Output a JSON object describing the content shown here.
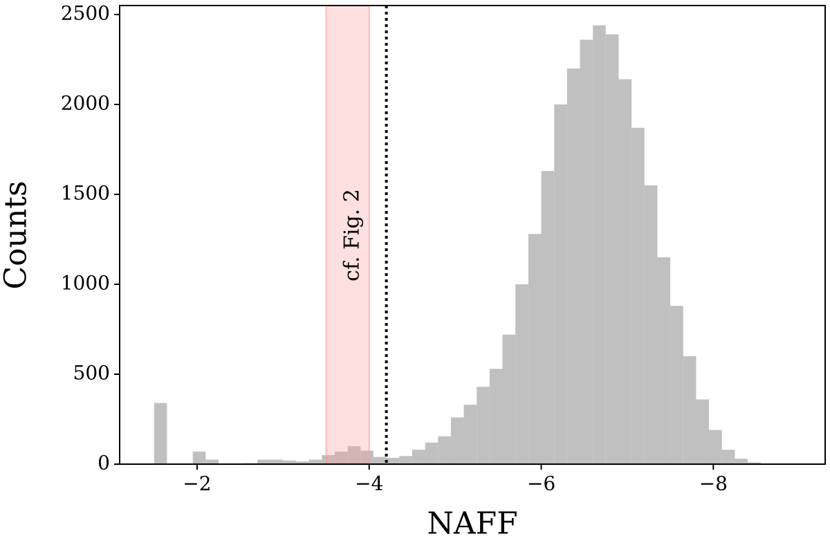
{
  "chart_data": {
    "type": "histogram",
    "xlabel": "NAFF",
    "ylabel": "Counts",
    "annotation": "cf. Fig. 2",
    "color": "#c0c0c0",
    "bins": [
      -1.5,
      -1.65,
      -1.8,
      -1.95,
      -2.1,
      -2.25,
      -2.4,
      -2.55,
      -2.7,
      -2.85,
      -3.0,
      -3.15,
      -3.3,
      -3.45,
      -3.6,
      -3.75,
      -3.9,
      -4.05,
      -4.2,
      -4.35,
      -4.5,
      -4.65,
      -4.8,
      -4.95,
      -5.1,
      -5.25,
      -5.4,
      -5.55,
      -5.7,
      -5.85,
      -6.0,
      -6.15,
      -6.3,
      -6.45,
      -6.6,
      -6.75,
      -6.9,
      -7.05,
      -7.2,
      -7.35,
      -7.5,
      -7.65,
      -7.8,
      -7.95,
      -8.1,
      -8.25,
      -8.4,
      -8.55
    ],
    "values": [
      340,
      0,
      0,
      70,
      25,
      0,
      0,
      5,
      25,
      25,
      20,
      15,
      25,
      50,
      70,
      100,
      75,
      40,
      35,
      45,
      80,
      120,
      155,
      260,
      330,
      430,
      530,
      720,
      1000,
      1280,
      1630,
      2000,
      2200,
      2360,
      2440,
      2390,
      2140,
      1870,
      1550,
      1150,
      880,
      600,
      360,
      190,
      80,
      30,
      10
    ],
    "shaded_span": [
      -3.5,
      -4.0
    ],
    "shaded_color": "#ff9999",
    "vline": -4.2,
    "xlim": [
      -1.1,
      -9.3
    ],
    "xticks": [
      {
        "value": -2,
        "label": "−2"
      },
      {
        "value": -4,
        "label": "−4"
      },
      {
        "value": -6,
        "label": "−6"
      },
      {
        "value": -8,
        "label": "−8"
      }
    ],
    "ylim": [
      0,
      2550
    ],
    "yticks": [
      0,
      500,
      1000,
      1500,
      2000,
      2500
    ]
  }
}
